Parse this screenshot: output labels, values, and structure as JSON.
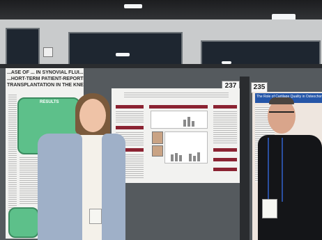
{
  "poster_left": {
    "title_lines": [
      "...ASE OF ... IN SYNOVIAL FLUI...",
      "...HORT-TERM PATIENT-REPORTED",
      "TRANSPLANTATION IN THE KNEE"
    ],
    "section_label": "RESULTS"
  },
  "board_numbers": {
    "center": "237",
    "right": "235"
  },
  "poster_right": {
    "title": "The Role of Cartilage Quality in Osteochondral..."
  }
}
